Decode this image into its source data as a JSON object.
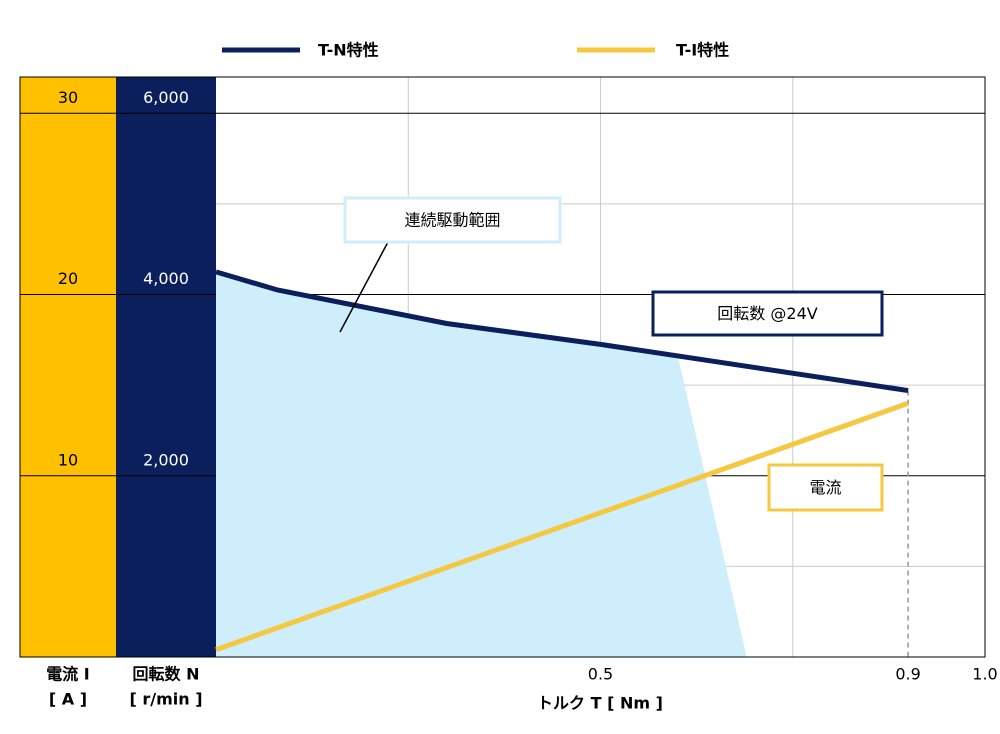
{
  "chart_data": {
    "type": "line",
    "legend": [
      "T-N特性",
      "T-I特性"
    ],
    "xlabel": "トルク T [ Nm ]",
    "ylabel": [
      "回転数 N",
      "[ r/min ]"
    ],
    "y2label": [
      "電流 I",
      "[ A ]"
    ],
    "xlim": [
      0,
      1.0
    ],
    "xticks": [
      0.5,
      0.9,
      {
        "value": 1.0,
        "label": "1.0"
      }
    ],
    "xgrid": [
      0.25,
      0.5,
      0.75
    ],
    "ylim": [
      0,
      6400
    ],
    "yticks": [
      {
        "value": 2000,
        "label": "2,000"
      },
      {
        "value": 4000,
        "label": "4,000"
      },
      {
        "value": 6000,
        "label": "6,000"
      }
    ],
    "ygrid_minor": [
      1000,
      3000,
      5000
    ],
    "y2lim": [
      0,
      32
    ],
    "y2ticks": [
      10,
      20,
      30
    ],
    "series": [
      {
        "name": "回転数 @24V",
        "color": "#0a1f5c",
        "x": [
          0,
          0.08,
          0.3,
          0.5,
          0.9
        ],
        "values": [
          4250,
          4050,
          3680,
          3450,
          2940
        ]
      },
      {
        "name": "電流",
        "color": "#f5c842",
        "axis": "y2",
        "x": [
          0,
          0.9
        ],
        "values": [
          0.4,
          14
        ]
      }
    ],
    "region": {
      "name": "連続駆動範囲",
      "color": "#cdeefa",
      "x": [
        0,
        0.08,
        0.3,
        0.5,
        0.6,
        0.69
      ],
      "values": [
        4250,
        4050,
        3680,
        3450,
        3340,
        0
      ]
    }
  }
}
